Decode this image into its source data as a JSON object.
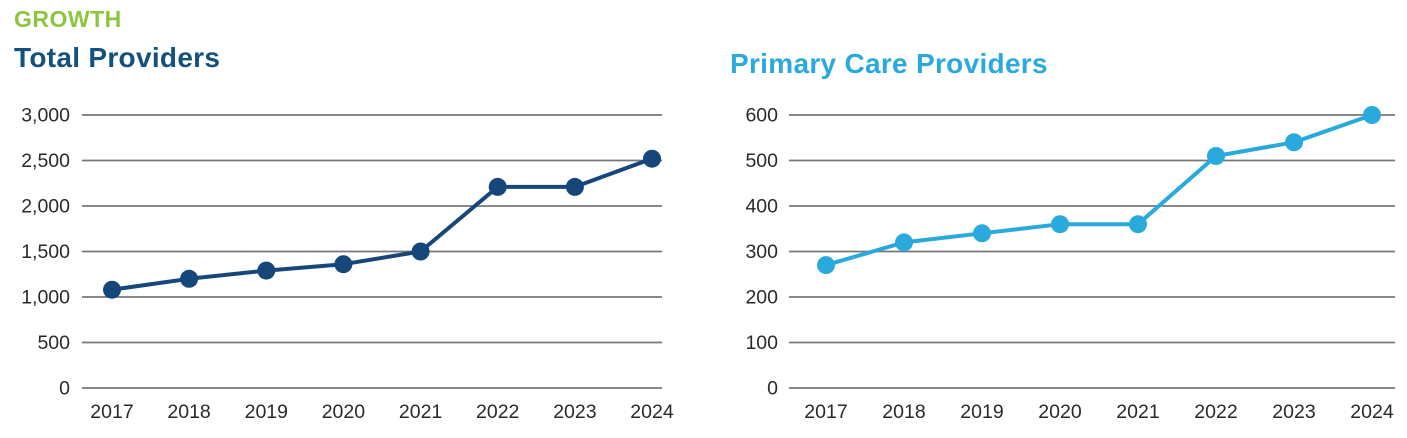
{
  "header": {
    "section_label": "GROWTH"
  },
  "colors": {
    "background": "#ffffff",
    "section_label": "#8CC63F",
    "gridline": "#77787B",
    "tick_text": "#2A2A2E"
  },
  "chart_data": [
    {
      "type": "line",
      "title": "Total Providers",
      "title_color": "#15517F",
      "line_color": "#16477A",
      "categories": [
        "2017",
        "2018",
        "2019",
        "2020",
        "2021",
        "2022",
        "2023",
        "2024"
      ],
      "values": [
        1080,
        1200,
        1290,
        1360,
        1500,
        2210,
        2210,
        2520
      ],
      "xlabel": "",
      "ylabel": "",
      "ylim": [
        0,
        3000
      ],
      "yticks": [
        {
          "v": 3000,
          "label": "3,000"
        },
        {
          "v": 2500,
          "label": "2,500"
        },
        {
          "v": 2000,
          "label": "2,000"
        },
        {
          "v": 1500,
          "label": "1,500"
        },
        {
          "v": 1000,
          "label": "1,000"
        },
        {
          "v": 500,
          "label": "500"
        },
        {
          "v": 0,
          "label": "0"
        }
      ],
      "grid": true,
      "legend": false
    },
    {
      "type": "line",
      "title": "Primary Care Providers",
      "title_color": "#29A9DC",
      "line_color": "#29A9DC",
      "categories": [
        "2017",
        "2018",
        "2019",
        "2020",
        "2021",
        "2022",
        "2023",
        "2024"
      ],
      "values": [
        270,
        320,
        340,
        360,
        360,
        510,
        540,
        600
      ],
      "xlabel": "",
      "ylabel": "",
      "ylim": [
        0,
        600
      ],
      "yticks": [
        {
          "v": 600,
          "label": "600"
        },
        {
          "v": 500,
          "label": "500"
        },
        {
          "v": 400,
          "label": "400"
        },
        {
          "v": 300,
          "label": "300"
        },
        {
          "v": 200,
          "label": "200"
        },
        {
          "v": 100,
          "label": "100"
        },
        {
          "v": 0,
          "label": "0"
        }
      ],
      "grid": true,
      "legend": false
    }
  ]
}
